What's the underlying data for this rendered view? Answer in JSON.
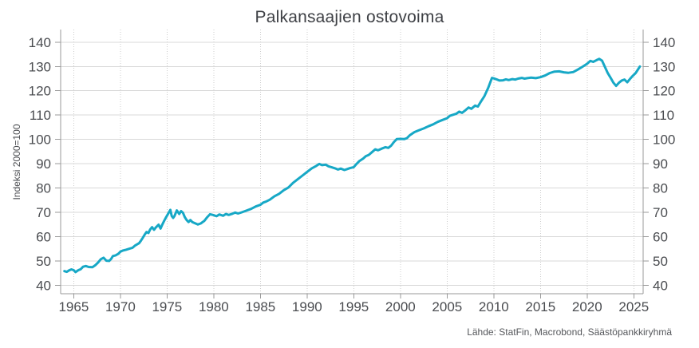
{
  "page": {
    "title": "Palkansaajien ostovoima"
  },
  "chart_data": {
    "type": "line",
    "title": "Palkansaajien ostovoima",
    "xlabel": "",
    "ylabel": "Indeksi 2000=100",
    "source": "Lähde: StatFin, Macrobond, Säästöpankkiryhmä",
    "legend_position": "none",
    "grid": {
      "horizontal": "solid",
      "vertical": "dotted"
    },
    "x_ticks": [
      1965,
      1970,
      1975,
      1980,
      1985,
      1990,
      1995,
      2000,
      2005,
      2010,
      2015,
      2020,
      2025
    ],
    "y_ticks": [
      40,
      50,
      60,
      70,
      80,
      90,
      100,
      110,
      120,
      130,
      140
    ],
    "xlim": [
      1963.6,
      2026.0
    ],
    "ylim": [
      36.5,
      145.2
    ],
    "colors": {
      "line": "#17a8c6",
      "grid_horizontal": "#d8d8d8",
      "grid_vertical": "#cccccc",
      "axis": "#9a9a9a",
      "tick_text": "#4a4c50",
      "title_text": "#3e4045",
      "background": "#ffffff"
    },
    "series": [
      {
        "name": "Palkansaajien ostovoima",
        "unit": "indeksi 2000=100",
        "points": [
          [
            1964.0,
            45.8
          ],
          [
            1964.25,
            45.5
          ],
          [
            1964.5,
            46.1
          ],
          [
            1964.75,
            46.5
          ],
          [
            1965.0,
            46.2
          ],
          [
            1965.2,
            45.4
          ],
          [
            1965.5,
            46.2
          ],
          [
            1965.75,
            46.6
          ],
          [
            1966.0,
            47.6
          ],
          [
            1966.3,
            47.9
          ],
          [
            1966.6,
            47.5
          ],
          [
            1967.0,
            47.4
          ],
          [
            1967.3,
            48.2
          ],
          [
            1967.6,
            49.3
          ],
          [
            1967.9,
            50.7
          ],
          [
            1968.2,
            51.3
          ],
          [
            1968.5,
            50.1
          ],
          [
            1968.8,
            50.0
          ],
          [
            1969.0,
            50.8
          ],
          [
            1969.2,
            52.0
          ],
          [
            1969.5,
            52.3
          ],
          [
            1969.8,
            53.0
          ],
          [
            1970.0,
            53.8
          ],
          [
            1970.3,
            54.3
          ],
          [
            1970.6,
            54.6
          ],
          [
            1971.0,
            55.1
          ],
          [
            1971.3,
            55.4
          ],
          [
            1971.6,
            56.4
          ],
          [
            1972.0,
            57.3
          ],
          [
            1972.2,
            58.3
          ],
          [
            1972.4,
            59.5
          ],
          [
            1972.6,
            60.8
          ],
          [
            1972.8,
            61.9
          ],
          [
            1973.0,
            61.5
          ],
          [
            1973.2,
            63.0
          ],
          [
            1973.4,
            63.9
          ],
          [
            1973.6,
            62.8
          ],
          [
            1973.8,
            63.8
          ],
          [
            1974.1,
            64.9
          ],
          [
            1974.3,
            63.3
          ],
          [
            1974.5,
            65.0
          ],
          [
            1974.7,
            66.6
          ],
          [
            1974.9,
            68.0
          ],
          [
            1975.1,
            69.3
          ],
          [
            1975.35,
            71.0
          ],
          [
            1975.5,
            68.5
          ],
          [
            1975.65,
            67.7
          ],
          [
            1975.8,
            68.5
          ],
          [
            1976.05,
            70.8
          ],
          [
            1976.3,
            69.3
          ],
          [
            1976.5,
            70.5
          ],
          [
            1976.7,
            69.8
          ],
          [
            1976.9,
            68.0
          ],
          [
            1977.1,
            66.8
          ],
          [
            1977.3,
            66.0
          ],
          [
            1977.5,
            66.8
          ],
          [
            1977.7,
            66.0
          ],
          [
            1978.0,
            65.5
          ],
          [
            1978.3,
            65.0
          ],
          [
            1978.6,
            65.4
          ],
          [
            1979.0,
            66.5
          ],
          [
            1979.3,
            68.0
          ],
          [
            1979.6,
            69.2
          ],
          [
            1980.0,
            68.8
          ],
          [
            1980.3,
            68.4
          ],
          [
            1980.6,
            69.1
          ],
          [
            1981.0,
            68.6
          ],
          [
            1981.3,
            69.3
          ],
          [
            1981.6,
            68.9
          ],
          [
            1982.0,
            69.4
          ],
          [
            1982.3,
            69.9
          ],
          [
            1982.6,
            69.5
          ],
          [
            1983.0,
            70.0
          ],
          [
            1983.5,
            70.7
          ],
          [
            1984.0,
            71.4
          ],
          [
            1984.5,
            72.4
          ],
          [
            1985.0,
            73.1
          ],
          [
            1985.3,
            74.0
          ],
          [
            1985.6,
            74.4
          ],
          [
            1986.0,
            75.2
          ],
          [
            1986.5,
            76.6
          ],
          [
            1987.0,
            77.6
          ],
          [
            1987.5,
            79.1
          ],
          [
            1988.0,
            80.2
          ],
          [
            1988.5,
            82.1
          ],
          [
            1989.0,
            83.6
          ],
          [
            1989.5,
            85.1
          ],
          [
            1990.0,
            86.6
          ],
          [
            1990.5,
            88.1
          ],
          [
            1991.0,
            89.1
          ],
          [
            1991.3,
            89.9
          ],
          [
            1991.6,
            89.4
          ],
          [
            1992.0,
            89.6
          ],
          [
            1992.3,
            88.9
          ],
          [
            1992.6,
            88.6
          ],
          [
            1993.0,
            88.1
          ],
          [
            1993.3,
            87.6
          ],
          [
            1993.6,
            88.0
          ],
          [
            1994.0,
            87.4
          ],
          [
            1994.3,
            87.8
          ],
          [
            1994.6,
            88.2
          ],
          [
            1995.0,
            88.6
          ],
          [
            1995.3,
            89.9
          ],
          [
            1995.6,
            91.1
          ],
          [
            1996.0,
            92.1
          ],
          [
            1996.3,
            93.1
          ],
          [
            1996.6,
            93.6
          ],
          [
            1997.0,
            94.9
          ],
          [
            1997.3,
            95.9
          ],
          [
            1997.6,
            95.5
          ],
          [
            1998.0,
            96.2
          ],
          [
            1998.4,
            96.8
          ],
          [
            1998.7,
            96.5
          ],
          [
            1999.0,
            97.4
          ],
          [
            1999.3,
            98.9
          ],
          [
            1999.6,
            100.1
          ],
          [
            2000.0,
            100.2
          ],
          [
            2000.4,
            100.1
          ],
          [
            2000.7,
            100.5
          ],
          [
            2001.0,
            101.7
          ],
          [
            2001.5,
            103.0
          ],
          [
            2002.0,
            103.8
          ],
          [
            2002.5,
            104.5
          ],
          [
            2003.0,
            105.4
          ],
          [
            2003.5,
            106.2
          ],
          [
            2004.0,
            107.2
          ],
          [
            2004.5,
            108.0
          ],
          [
            2005.0,
            108.7
          ],
          [
            2005.3,
            109.7
          ],
          [
            2005.6,
            110.1
          ],
          [
            2006.0,
            110.6
          ],
          [
            2006.3,
            111.4
          ],
          [
            2006.6,
            110.9
          ],
          [
            2007.0,
            112.1
          ],
          [
            2007.3,
            113.1
          ],
          [
            2007.6,
            112.6
          ],
          [
            2008.0,
            113.9
          ],
          [
            2008.3,
            113.5
          ],
          [
            2008.6,
            115.4
          ],
          [
            2009.0,
            117.8
          ],
          [
            2009.4,
            121.2
          ],
          [
            2009.8,
            125.3
          ],
          [
            2010.0,
            125.1
          ],
          [
            2010.3,
            124.7
          ],
          [
            2010.6,
            124.2
          ],
          [
            2011.0,
            124.3
          ],
          [
            2011.3,
            124.7
          ],
          [
            2011.6,
            124.4
          ],
          [
            2012.0,
            124.8
          ],
          [
            2012.3,
            124.6
          ],
          [
            2012.6,
            125.0
          ],
          [
            2013.0,
            125.3
          ],
          [
            2013.3,
            125.0
          ],
          [
            2013.6,
            125.2
          ],
          [
            2014.0,
            125.4
          ],
          [
            2014.5,
            125.2
          ],
          [
            2015.0,
            125.6
          ],
          [
            2015.5,
            126.3
          ],
          [
            2016.0,
            127.3
          ],
          [
            2016.5,
            127.9
          ],
          [
            2017.0,
            128.0
          ],
          [
            2017.5,
            127.6
          ],
          [
            2018.0,
            127.4
          ],
          [
            2018.5,
            127.7
          ],
          [
            2019.0,
            128.7
          ],
          [
            2019.5,
            129.9
          ],
          [
            2020.0,
            131.1
          ],
          [
            2020.35,
            132.3
          ],
          [
            2020.65,
            131.9
          ],
          [
            2021.0,
            132.6
          ],
          [
            2021.3,
            133.1
          ],
          [
            2021.6,
            132.4
          ],
          [
            2021.9,
            129.9
          ],
          [
            2022.2,
            127.4
          ],
          [
            2022.5,
            125.4
          ],
          [
            2022.8,
            123.4
          ],
          [
            2023.1,
            122.0
          ],
          [
            2023.4,
            123.3
          ],
          [
            2023.7,
            124.2
          ],
          [
            2024.0,
            124.6
          ],
          [
            2024.3,
            123.5
          ],
          [
            2024.6,
            124.9
          ],
          [
            2024.9,
            126.2
          ],
          [
            2025.2,
            127.3
          ],
          [
            2025.45,
            128.8
          ],
          [
            2025.65,
            130.0
          ]
        ]
      }
    ]
  }
}
